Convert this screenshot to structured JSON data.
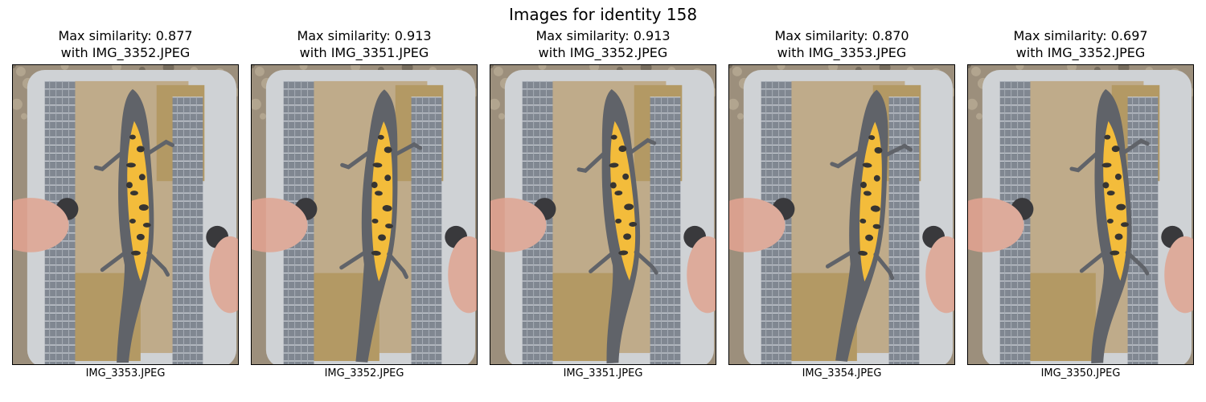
{
  "figure": {
    "title": "Images for identity 158"
  },
  "panels": [
    {
      "title_line1": "Max similarity: 0.877",
      "title_line2": "with IMG_3352.JPEG",
      "filename": "IMG_3353.JPEG"
    },
    {
      "title_line1": "Max similarity: 0.913",
      "title_line2": "with IMG_3351.JPEG",
      "filename": "IMG_3352.JPEG"
    },
    {
      "title_line1": "Max similarity: 0.913",
      "title_line2": "with IMG_3352.JPEG",
      "filename": "IMG_3351.JPEG"
    },
    {
      "title_line1": "Max similarity: 0.870",
      "title_line2": "with IMG_3353.JPEG",
      "filename": "IMG_3354.JPEG"
    },
    {
      "title_line1": "Max similarity: 0.697",
      "title_line2": "with IMG_3352.JPEG",
      "filename": "IMG_3350.JPEG"
    }
  ],
  "colors": {
    "gravel": "#9c8f7c",
    "tray_frame": "#c9ccd0",
    "grid_strip": "#6f7782",
    "sand": "#b7a07a",
    "newt_belly": "#f2b320",
    "newt_spots": "#1c1a16",
    "newt_body": "#4b4e55",
    "skin": "#d9a08e"
  }
}
